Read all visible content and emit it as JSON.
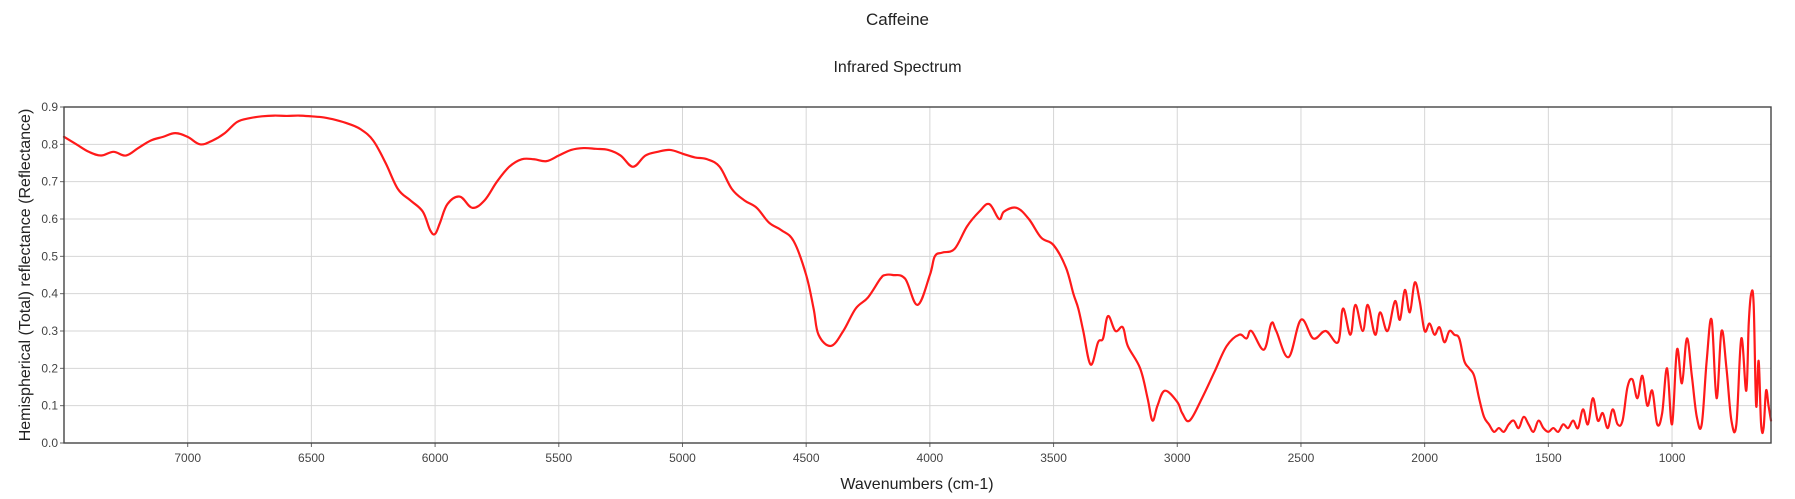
{
  "chart_data": {
    "type": "line",
    "title": "Caffeine",
    "subtitle": "Infrared Spectrum",
    "xlabel": "Wavenumbers (cm-1)",
    "ylabel": "Hemispherical (Total) reflectance (Reflectance)",
    "x_reversed": true,
    "xlim": [
      7500,
      600
    ],
    "ylim": [
      0,
      0.9
    ],
    "grid": true,
    "legend": "none",
    "x_ticks": [
      7000,
      6500,
      6000,
      5500,
      5000,
      4500,
      4000,
      3500,
      3000,
      2500,
      2000,
      1500,
      1000
    ],
    "y_ticks": [
      "0.0",
      "0.1",
      "0.2",
      "0.3",
      "0.4",
      "0.5",
      "0.6",
      "0.7",
      "0.8",
      "0.9"
    ],
    "series": [
      {
        "color": "#ff1a1a",
        "x": [
          7500,
          7450,
          7400,
          7350,
          7300,
          7250,
          7200,
          7150,
          7100,
          7050,
          7000,
          6950,
          6900,
          6850,
          6800,
          6750,
          6700,
          6650,
          6600,
          6550,
          6500,
          6450,
          6400,
          6350,
          6300,
          6250,
          6200,
          6150,
          6100,
          6050,
          6020,
          6000,
          5980,
          5950,
          5900,
          5850,
          5800,
          5750,
          5700,
          5650,
          5600,
          5550,
          5500,
          5450,
          5400,
          5350,
          5300,
          5250,
          5200,
          5150,
          5100,
          5050,
          5000,
          4950,
          4900,
          4850,
          4800,
          4750,
          4700,
          4650,
          4600,
          4550,
          4500,
          4470,
          4450,
          4400,
          4350,
          4300,
          4250,
          4200,
          4180,
          4150,
          4100,
          4050,
          4000,
          3980,
          3950,
          3900,
          3850,
          3800,
          3760,
          3720,
          3700,
          3650,
          3600,
          3550,
          3500,
          3450,
          3420,
          3400,
          3380,
          3350,
          3320,
          3300,
          3280,
          3250,
          3220,
          3200,
          3150,
          3120,
          3100,
          3080,
          3050,
          3000,
          2980,
          2950,
          2900,
          2850,
          2800,
          2750,
          2720,
          2700,
          2650,
          2620,
          2600,
          2550,
          2500,
          2450,
          2400,
          2350,
          2330,
          2300,
          2280,
          2250,
          2230,
          2200,
          2180,
          2150,
          2120,
          2100,
          2080,
          2060,
          2040,
          2020,
          2000,
          1980,
          1960,
          1940,
          1920,
          1900,
          1880,
          1860,
          1840,
          1820,
          1800,
          1780,
          1760,
          1740,
          1720,
          1700,
          1680,
          1660,
          1640,
          1620,
          1600,
          1580,
          1560,
          1540,
          1520,
          1500,
          1480,
          1460,
          1440,
          1420,
          1400,
          1380,
          1360,
          1340,
          1320,
          1300,
          1280,
          1260,
          1240,
          1220,
          1200,
          1180,
          1160,
          1140,
          1120,
          1100,
          1080,
          1060,
          1040,
          1020,
          1000,
          980,
          960,
          940,
          920,
          900,
          880,
          860,
          840,
          820,
          800,
          780,
          760,
          740,
          720,
          700,
          690,
          680,
          670,
          660,
          650,
          640,
          630,
          620,
          610,
          600
        ],
        "y": [
          0.82,
          0.8,
          0.78,
          0.77,
          0.78,
          0.77,
          0.79,
          0.81,
          0.82,
          0.83,
          0.82,
          0.8,
          0.81,
          0.83,
          0.86,
          0.87,
          0.875,
          0.877,
          0.876,
          0.877,
          0.875,
          0.872,
          0.865,
          0.855,
          0.84,
          0.81,
          0.75,
          0.68,
          0.65,
          0.62,
          0.57,
          0.56,
          0.59,
          0.64,
          0.66,
          0.63,
          0.65,
          0.7,
          0.74,
          0.76,
          0.76,
          0.755,
          0.77,
          0.785,
          0.79,
          0.788,
          0.785,
          0.77,
          0.74,
          0.77,
          0.78,
          0.785,
          0.775,
          0.765,
          0.76,
          0.74,
          0.68,
          0.65,
          0.63,
          0.59,
          0.57,
          0.54,
          0.45,
          0.36,
          0.29,
          0.26,
          0.3,
          0.36,
          0.39,
          0.44,
          0.45,
          0.45,
          0.44,
          0.37,
          0.45,
          0.5,
          0.51,
          0.52,
          0.58,
          0.62,
          0.64,
          0.6,
          0.62,
          0.63,
          0.6,
          0.55,
          0.53,
          0.47,
          0.4,
          0.36,
          0.3,
          0.21,
          0.27,
          0.28,
          0.34,
          0.3,
          0.31,
          0.26,
          0.2,
          0.12,
          0.06,
          0.1,
          0.14,
          0.11,
          0.08,
          0.06,
          0.12,
          0.19,
          0.26,
          0.29,
          0.28,
          0.3,
          0.25,
          0.32,
          0.3,
          0.23,
          0.33,
          0.28,
          0.3,
          0.27,
          0.36,
          0.29,
          0.37,
          0.3,
          0.37,
          0.29,
          0.35,
          0.3,
          0.38,
          0.33,
          0.41,
          0.35,
          0.43,
          0.38,
          0.3,
          0.32,
          0.29,
          0.31,
          0.27,
          0.3,
          0.29,
          0.28,
          0.22,
          0.2,
          0.18,
          0.12,
          0.07,
          0.05,
          0.03,
          0.04,
          0.03,
          0.05,
          0.06,
          0.04,
          0.07,
          0.05,
          0.03,
          0.06,
          0.04,
          0.03,
          0.04,
          0.03,
          0.05,
          0.04,
          0.06,
          0.04,
          0.09,
          0.05,
          0.12,
          0.06,
          0.08,
          0.04,
          0.09,
          0.05,
          0.06,
          0.15,
          0.17,
          0.12,
          0.18,
          0.1,
          0.14,
          0.05,
          0.08,
          0.2,
          0.05,
          0.25,
          0.16,
          0.28,
          0.18,
          0.07,
          0.05,
          0.22,
          0.33,
          0.12,
          0.3,
          0.2,
          0.06,
          0.05,
          0.28,
          0.14,
          0.32,
          0.4,
          0.37,
          0.1,
          0.22,
          0.05,
          0.04,
          0.14,
          0.1,
          0.06
        ]
      }
    ]
  }
}
